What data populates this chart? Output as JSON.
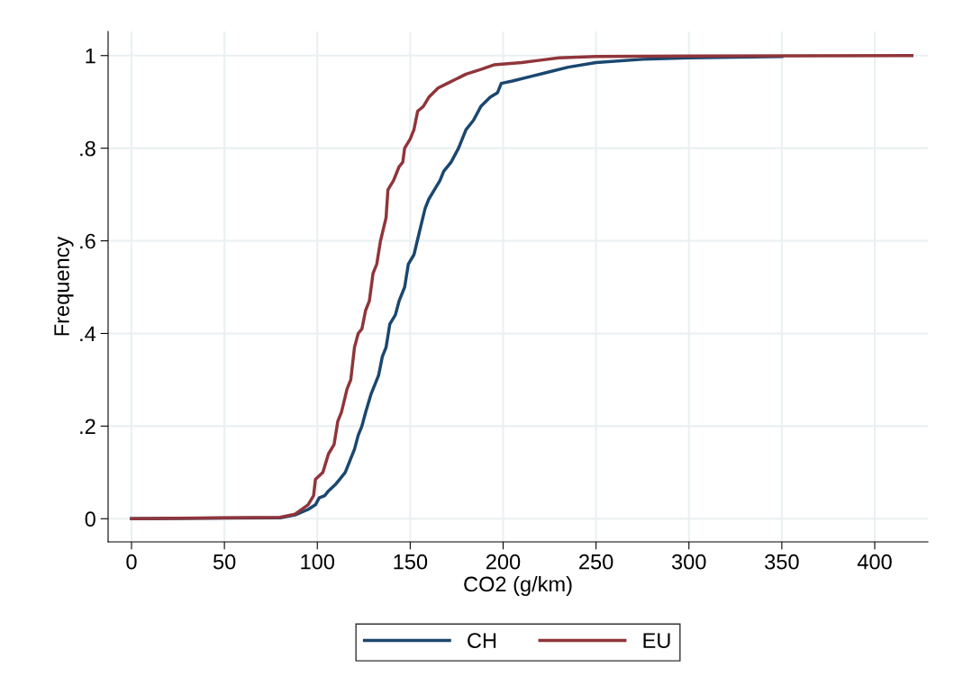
{
  "chart_data": {
    "type": "line",
    "xlabel": "CO2 (g/km)",
    "ylabel": "Frequency",
    "xlim": [
      -12.6,
      428.6
    ],
    "ylim": [
      -0.05,
      1.052
    ],
    "xticks": [
      0,
      50,
      100,
      150,
      200,
      250,
      300,
      350,
      400
    ],
    "yticks": [
      {
        "value": 0,
        "label": "0"
      },
      {
        "value": 0.2,
        "label": ".2"
      },
      {
        "value": 0.4,
        "label": ".4"
      },
      {
        "value": 0.6,
        "label": ".6"
      },
      {
        "value": 0.8,
        "label": ".8"
      },
      {
        "value": 1,
        "label": "1"
      }
    ],
    "grid": true,
    "legend": "bottom",
    "marker": "none",
    "line_style": "solid",
    "series": [
      {
        "name": "CH",
        "color": "#1a476f",
        "x": [
          0,
          80,
          88,
          95,
          99,
          101,
          104,
          106,
          110,
          112,
          115,
          117,
          120,
          122,
          124,
          126,
          129,
          131,
          133,
          135,
          137,
          139,
          142,
          144,
          147,
          149,
          152,
          155,
          158,
          160,
          163,
          166,
          168,
          172,
          176,
          180,
          184,
          188,
          193,
          197,
          199,
          205,
          215,
          225,
          235,
          250,
          275,
          300,
          350
        ],
        "values": [
          0,
          0.002,
          0.008,
          0.02,
          0.03,
          0.045,
          0.05,
          0.06,
          0.075,
          0.085,
          0.1,
          0.12,
          0.15,
          0.18,
          0.2,
          0.23,
          0.27,
          0.29,
          0.31,
          0.35,
          0.37,
          0.42,
          0.44,
          0.47,
          0.5,
          0.55,
          0.57,
          0.62,
          0.67,
          0.69,
          0.71,
          0.73,
          0.75,
          0.77,
          0.8,
          0.84,
          0.86,
          0.89,
          0.91,
          0.92,
          0.94,
          0.945,
          0.955,
          0.965,
          0.975,
          0.985,
          0.992,
          0.995,
          0.998
        ]
      },
      {
        "name": "EU",
        "color": "#90353b",
        "x": [
          0,
          50,
          80,
          88,
          95,
          98,
          99,
          103,
          106,
          109,
          111,
          113,
          116,
          118,
          120,
          122,
          124,
          126,
          128,
          130,
          132,
          134,
          137,
          138,
          141,
          144,
          146,
          147,
          150,
          152,
          154,
          157,
          160,
          165,
          170,
          175,
          180,
          188,
          195,
          210,
          220,
          230,
          250,
          300,
          420
        ],
        "values": [
          0,
          0.002,
          0.003,
          0.01,
          0.03,
          0.05,
          0.085,
          0.1,
          0.14,
          0.16,
          0.21,
          0.23,
          0.28,
          0.3,
          0.37,
          0.4,
          0.41,
          0.45,
          0.47,
          0.53,
          0.55,
          0.6,
          0.65,
          0.71,
          0.73,
          0.76,
          0.77,
          0.8,
          0.82,
          0.84,
          0.88,
          0.89,
          0.91,
          0.93,
          0.94,
          0.95,
          0.96,
          0.97,
          0.98,
          0.985,
          0.99,
          0.995,
          0.998,
          0.999,
          1
        ]
      }
    ]
  }
}
